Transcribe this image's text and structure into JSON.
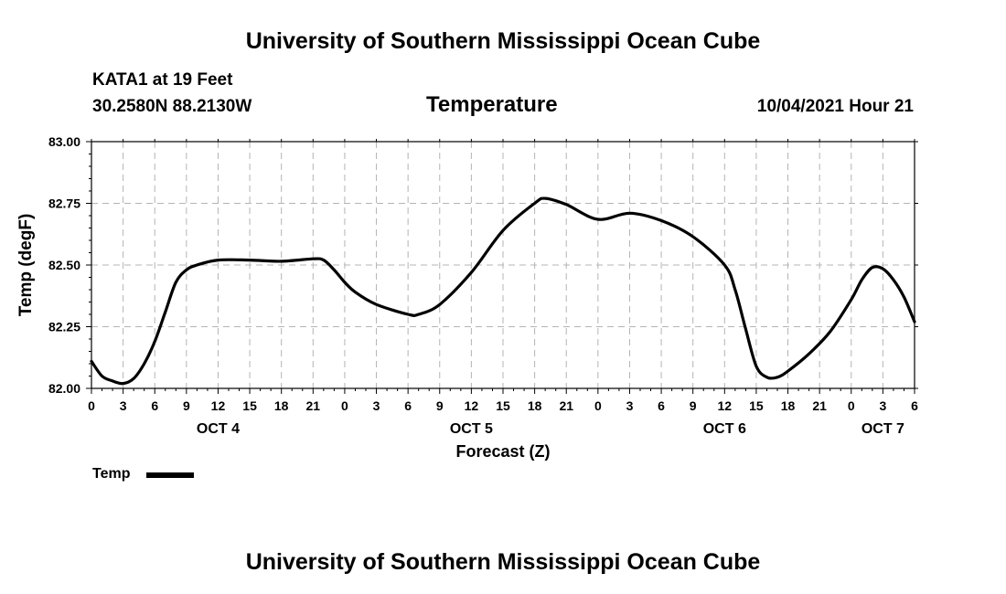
{
  "header": {
    "title_top": "University of Southern Mississippi Ocean Cube",
    "station": "KATA1 at 19 Feet",
    "coords": "30.2580N  88.2130W",
    "parameter": "Temperature",
    "datetime": "10/04/2021 Hour 21"
  },
  "footer": {
    "title_bottom": "University of Southern Mississippi Ocean Cube"
  },
  "legend": {
    "label": "Temp",
    "color": "#000000"
  },
  "chart_data": {
    "type": "line",
    "title": "Temperature",
    "xlabel": "Forecast (Z)",
    "ylabel": "Temp (degF)",
    "xlim": [
      0,
      78
    ],
    "ylim": [
      82.0,
      83.0
    ],
    "y_ticks": [
      "82.00",
      "82.25",
      "82.50",
      "82.75",
      "83.00"
    ],
    "x_tick_labels": [
      "0",
      "3",
      "6",
      "9",
      "12",
      "15",
      "18",
      "21",
      "0",
      "3",
      "6",
      "9",
      "12",
      "15",
      "18",
      "21",
      "0",
      "3",
      "6",
      "9",
      "12",
      "15",
      "18",
      "21",
      "0",
      "3",
      "6"
    ],
    "x_tick_step_hours": 3,
    "day_labels": [
      {
        "label": "OCT 4",
        "hour": 12
      },
      {
        "label": "OCT 5",
        "hour": 36
      },
      {
        "label": "OCT 6",
        "hour": 60
      },
      {
        "label": "OCT 7",
        "hour": 75
      }
    ],
    "grid": true,
    "series": [
      {
        "name": "Temp",
        "x": [
          0,
          1,
          2,
          3,
          4,
          5,
          6,
          7,
          8,
          9,
          10,
          12,
          15,
          18,
          21,
          22,
          23,
          24,
          25,
          27,
          30,
          31,
          33,
          36,
          39,
          42,
          43,
          45,
          48,
          51,
          54,
          57,
          60,
          61,
          62,
          63,
          64,
          65,
          66,
          68,
          70,
          72,
          73,
          74,
          75,
          76,
          77,
          78
        ],
        "y": [
          82.11,
          82.05,
          82.03,
          82.02,
          82.04,
          82.1,
          82.19,
          82.31,
          82.43,
          82.48,
          82.5,
          82.52,
          82.52,
          82.515,
          82.525,
          82.52,
          82.48,
          82.43,
          82.39,
          82.34,
          82.3,
          82.3,
          82.34,
          82.47,
          82.64,
          82.75,
          82.77,
          82.745,
          82.685,
          82.71,
          82.68,
          82.615,
          82.5,
          82.4,
          82.24,
          82.09,
          82.045,
          82.045,
          82.07,
          82.14,
          82.23,
          82.36,
          82.44,
          82.49,
          82.485,
          82.44,
          82.37,
          82.27
        ]
      }
    ]
  }
}
